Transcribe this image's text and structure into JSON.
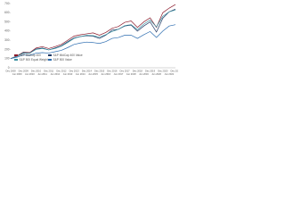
{
  "chart_data": {
    "type": "line",
    "categories": [
      "Dec 2008",
      "Jun 2009",
      "Dec 2009",
      "Jun 2010",
      "Dec 2010",
      "Jun 2011",
      "Dec 2011",
      "Jun 2012",
      "Dec 2012",
      "Jun 2013",
      "Dec 2013",
      "Jun 2014",
      "Dec 2014",
      "Jun 2015",
      "Dec 2015",
      "Jun 2016",
      "Dec 2016",
      "Jun 2017",
      "Dec 2017",
      "Jun 2018",
      "Dec 2018",
      "Jun 2019",
      "Dec 2019",
      "Jun 2020",
      "Dec 2020",
      "Jun 2021",
      "Dec 2021"
    ],
    "series": [
      {
        "name": "S&P MidCap 400",
        "color": "#8b1a2b",
        "values": [
          100,
          130,
          170,
          165,
          215,
          230,
          210,
          230,
          255,
          300,
          345,
          360,
          370,
          380,
          355,
          385,
          430,
          450,
          495,
          510,
          440,
          500,
          545,
          440,
          600,
          650,
          690
        ]
      },
      {
        "name": "S&P MidCap 400 Value",
        "color": "#1f3864",
        "values": [
          100,
          125,
          160,
          160,
          205,
          215,
          195,
          215,
          240,
          285,
          325,
          340,
          350,
          345,
          320,
          355,
          410,
          420,
          455,
          465,
          400,
          455,
          500,
          390,
          540,
          610,
          640
        ]
      },
      {
        "name": "S&P 500 Equal Weight",
        "color": "#3a8fa0",
        "values": [
          100,
          125,
          165,
          160,
          200,
          210,
          195,
          210,
          235,
          275,
          320,
          340,
          355,
          350,
          335,
          360,
          395,
          420,
          460,
          470,
          415,
          475,
          520,
          445,
          560,
          610,
          630
        ]
      },
      {
        "name": "S&P 500 Value",
        "color": "#2b6cb0",
        "values": [
          100,
          115,
          140,
          135,
          160,
          165,
          160,
          175,
          190,
          220,
          255,
          270,
          280,
          275,
          265,
          285,
          320,
          330,
          355,
          355,
          320,
          360,
          395,
          330,
          400,
          455,
          470
        ]
      }
    ],
    "ylim": [
      0,
      700
    ],
    "yticks": [
      0,
      100,
      200,
      300,
      400,
      500,
      600,
      700
    ],
    "grid": false
  }
}
